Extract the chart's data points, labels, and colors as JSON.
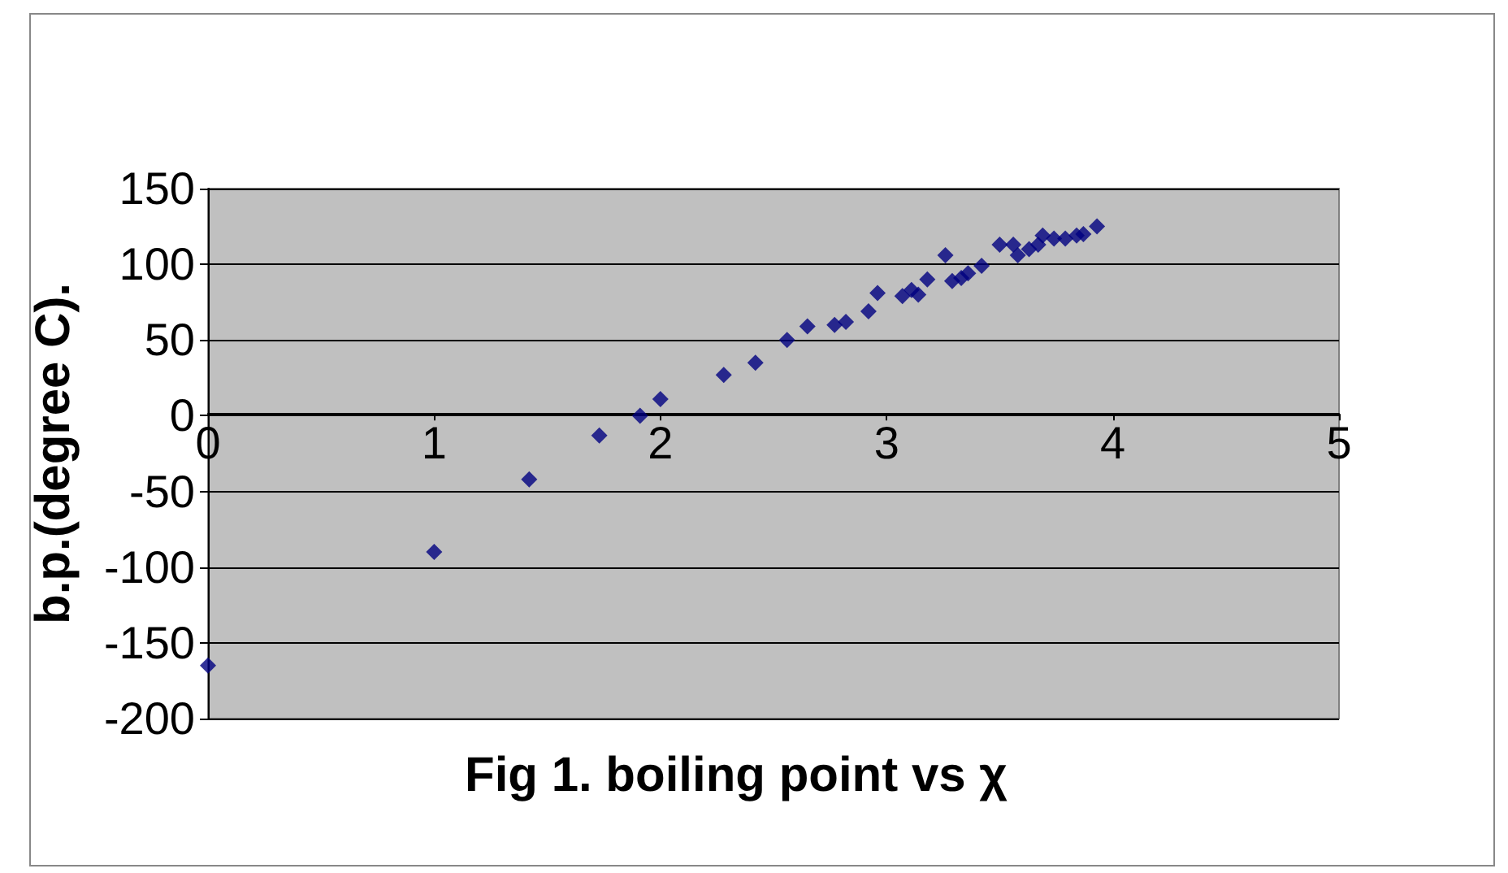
{
  "chart_data": {
    "type": "scatter",
    "title": "Fig 1. boiling point vs χ",
    "ylabel": "b.p.(degree C).",
    "x": [
      0,
      1,
      1.42,
      1.73,
      1.91,
      2.0,
      2.28,
      2.42,
      2.56,
      2.65,
      2.77,
      2.82,
      2.92,
      2.96,
      3.07,
      3.11,
      3.14,
      3.18,
      3.26,
      3.29,
      3.33,
      3.36,
      3.42,
      3.5,
      3.56,
      3.58,
      3.63,
      3.67,
      3.69,
      3.74,
      3.79,
      3.84,
      3.87,
      3.93
    ],
    "values": [
      -165,
      -90,
      -42,
      -13,
      0,
      11,
      27,
      35,
      50,
      59,
      60,
      62,
      69,
      81,
      79,
      83,
      80,
      90,
      106,
      89,
      91,
      94,
      99,
      113,
      113,
      106,
      110,
      113,
      119,
      117,
      117,
      119,
      120,
      125
    ],
    "color": "#000080",
    "marker": "diamond",
    "xlim": [
      0,
      5
    ],
    "xticks": [
      0,
      1,
      2,
      3,
      4,
      5
    ],
    "ylim": [
      -200,
      150
    ],
    "yticks": [
      -200,
      -150,
      -100,
      -50,
      0,
      50,
      100,
      150
    ],
    "grid": "y"
  }
}
